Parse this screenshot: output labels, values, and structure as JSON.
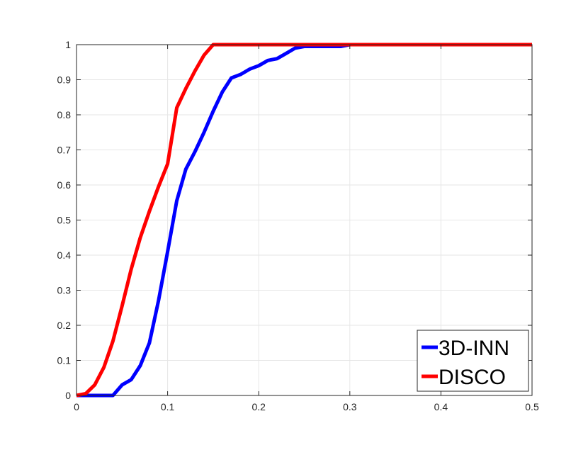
{
  "chart_data": {
    "type": "line",
    "title": "",
    "xlabel": "",
    "ylabel": "",
    "xlim": [
      0,
      0.5
    ],
    "ylim": [
      0,
      1
    ],
    "xticks": [
      0,
      0.1,
      0.2,
      0.3,
      0.4,
      0.5
    ],
    "yticks": [
      0,
      0.1,
      0.2,
      0.3,
      0.4,
      0.5,
      0.6,
      0.7,
      0.8,
      0.9,
      1
    ],
    "xtick_labels": [
      "0",
      "0.1",
      "0.2",
      "0.3",
      "0.4",
      "0.5"
    ],
    "ytick_labels": [
      "0",
      "0.1",
      "0.2",
      "0.3",
      "0.4",
      "0.5",
      "0.6",
      "0.7",
      "0.8",
      "0.9",
      "1"
    ],
    "grid": true,
    "legend_position": "bottom-right",
    "series": [
      {
        "name": "3D-INN",
        "color": "#0000ff",
        "x": [
          0,
          0.01,
          0.02,
          0.03,
          0.04,
          0.05,
          0.06,
          0.07,
          0.08,
          0.09,
          0.1,
          0.11,
          0.12,
          0.13,
          0.14,
          0.15,
          0.16,
          0.17,
          0.18,
          0.19,
          0.2,
          0.21,
          0.22,
          0.23,
          0.24,
          0.25,
          0.26,
          0.27,
          0.28,
          0.29,
          0.3,
          0.5
        ],
        "y": [
          0,
          0,
          0,
          0,
          0,
          0.03,
          0.045,
          0.085,
          0.15,
          0.27,
          0.41,
          0.555,
          0.645,
          0.695,
          0.75,
          0.81,
          0.865,
          0.905,
          0.915,
          0.93,
          0.94,
          0.955,
          0.96,
          0.975,
          0.99,
          0.995,
          0.995,
          0.995,
          0.995,
          0.995,
          1,
          1
        ]
      },
      {
        "name": "DISCO",
        "color": "#ff0000",
        "x": [
          0,
          0.01,
          0.02,
          0.03,
          0.04,
          0.05,
          0.06,
          0.07,
          0.08,
          0.09,
          0.1,
          0.11,
          0.12,
          0.13,
          0.14,
          0.15,
          0.16,
          0.5
        ],
        "y": [
          0,
          0.005,
          0.03,
          0.08,
          0.155,
          0.255,
          0.36,
          0.45,
          0.525,
          0.595,
          0.66,
          0.82,
          0.875,
          0.925,
          0.97,
          1,
          1,
          1
        ]
      }
    ]
  }
}
